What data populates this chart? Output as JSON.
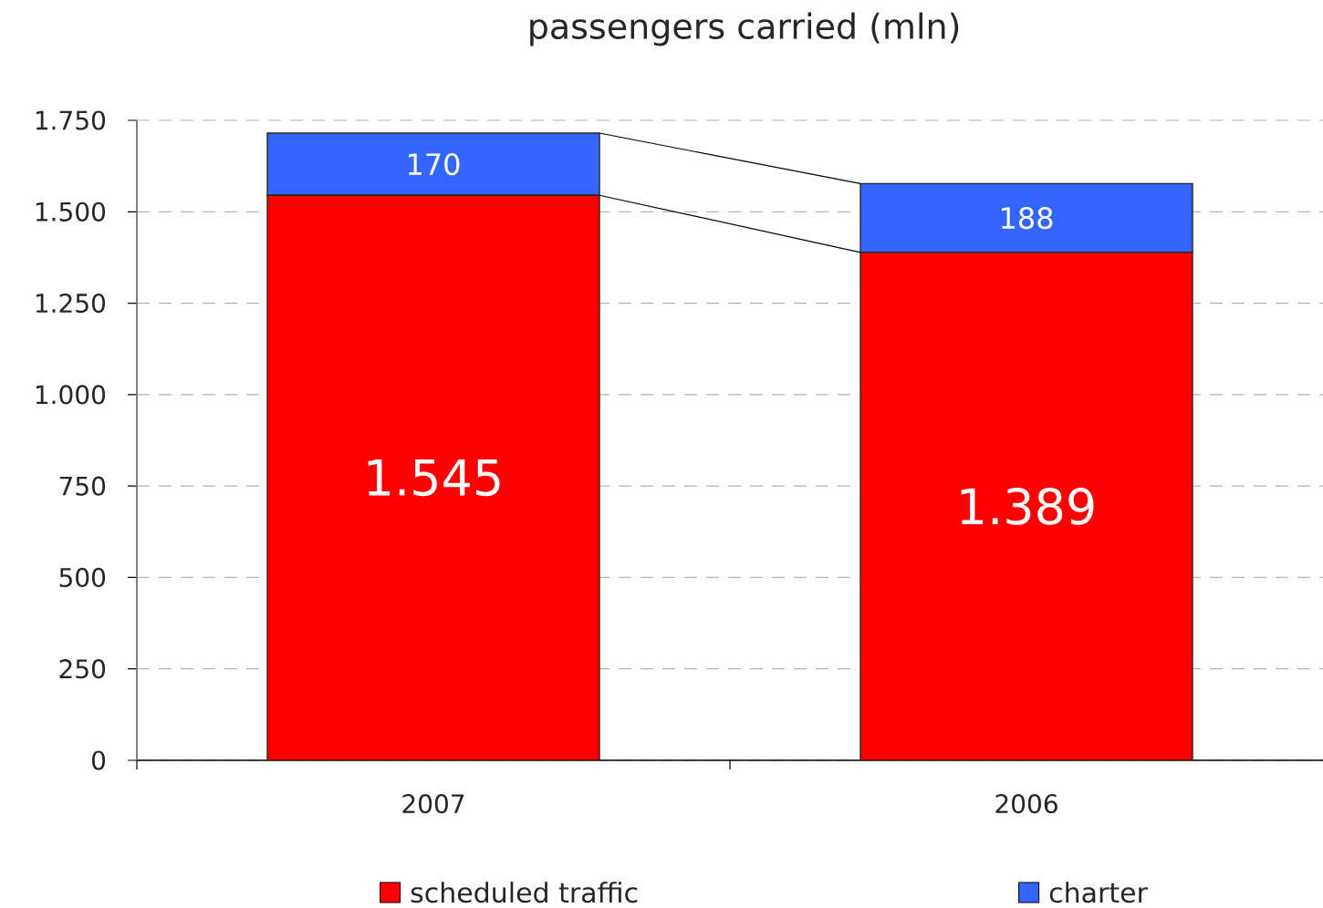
{
  "chart_data": {
    "type": "bar",
    "title": "passengers carried (mln)",
    "categories": [
      "2007",
      "2006"
    ],
    "stacked": true,
    "series": [
      {
        "name": "scheduled traffic",
        "color": "#ff0000",
        "values": [
          1545,
          1389
        ],
        "value_labels": [
          "1.545",
          "1.389"
        ]
      },
      {
        "name": "charter",
        "color": "#3366ff",
        "values": [
          170,
          188
        ],
        "value_labels": [
          "170",
          "188"
        ]
      }
    ],
    "ylim": [
      0,
      1750
    ],
    "yticks": [
      0,
      250,
      500,
      750,
      {
        "value": 1000,
        "label": "1.000"
      },
      {
        "value": 1250,
        "label": "1.250"
      },
      {
        "value": 1500,
        "label": "1.500"
      },
      {
        "value": 1750,
        "label": "1.750"
      }
    ],
    "grid": "y",
    "legend": "bottom"
  }
}
